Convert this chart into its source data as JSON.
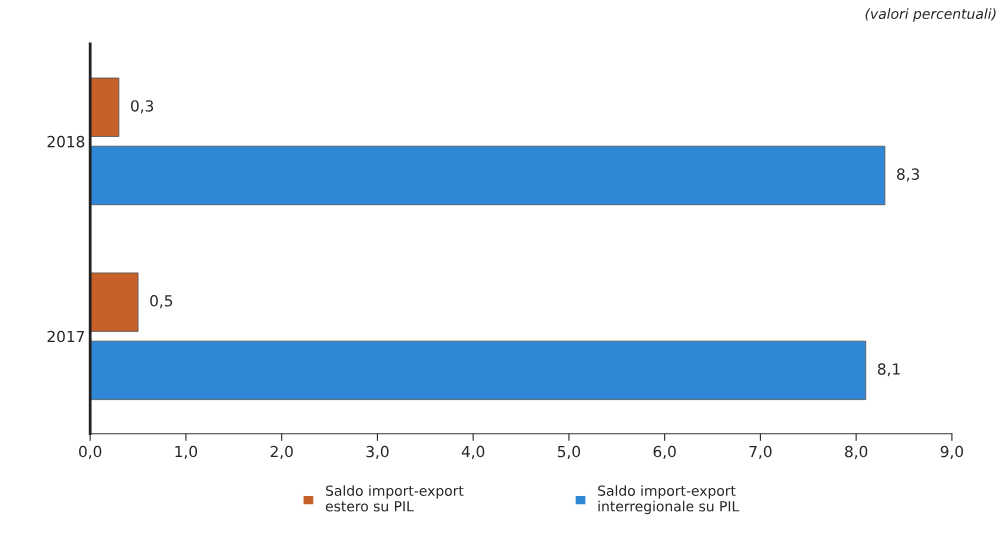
{
  "chart_data": {
    "type": "bar",
    "orientation": "horizontal",
    "categories": [
      "2018",
      "2017"
    ],
    "series": [
      {
        "name": "Saldo import-export\nestero su PIL",
        "color": "#c8602a",
        "values": [
          0.3,
          0.5
        ],
        "value_labels": [
          "0,3",
          "0,5"
        ]
      },
      {
        "name": "Saldo import-export\ninterregionale su PIL",
        "color": "#2f87d6",
        "values": [
          8.3,
          8.1
        ],
        "value_labels": [
          "8,3",
          "8,1"
        ]
      }
    ],
    "xlim": [
      0,
      9
    ],
    "xticks": [
      {
        "value": 0,
        "label": "0,0"
      },
      {
        "value": 1,
        "label": "1,0"
      },
      {
        "value": 2,
        "label": "2,0"
      },
      {
        "value": 3,
        "label": "3,0"
      },
      {
        "value": 4,
        "label": "4,0"
      },
      {
        "value": 5,
        "label": "5,0"
      },
      {
        "value": 6,
        "label": "6,0"
      },
      {
        "value": 7,
        "label": "7,0"
      },
      {
        "value": 8,
        "label": "8,0"
      },
      {
        "value": 9,
        "label": "9,0"
      }
    ],
    "annotations": [
      "(valori percentuali)"
    ],
    "legend": "bottom",
    "grid": false
  }
}
